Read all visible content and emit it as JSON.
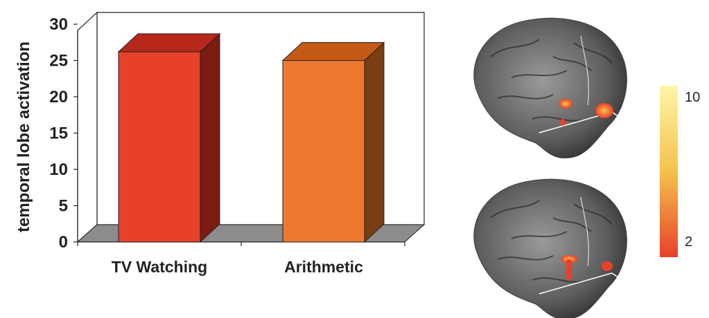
{
  "chart_data": {
    "type": "bar",
    "categories": [
      "TV Watching",
      "Arithmetic"
    ],
    "values": [
      26.2,
      25.0
    ],
    "ylabel": "temporal lobe activation",
    "ylim": [
      0,
      30
    ],
    "yticks": [
      "0",
      "5",
      "10",
      "15",
      "20",
      "25",
      "30"
    ],
    "grid": false,
    "style": "3d",
    "bar_colors": [
      {
        "front": "#e8412a",
        "top": "#b8281a",
        "side": "#7a1c10"
      },
      {
        "front": "#ee7830",
        "top": "#c45a16",
        "side": "#7a3e12"
      }
    ]
  },
  "colorbar": {
    "max_label": "10",
    "min_label": "2",
    "colors": [
      "#fdf6a8",
      "#f5c24a",
      "#e8412a"
    ]
  },
  "brain_images": [
    {
      "name": "brain-scan-top"
    },
    {
      "name": "brain-scan-bottom"
    }
  ]
}
